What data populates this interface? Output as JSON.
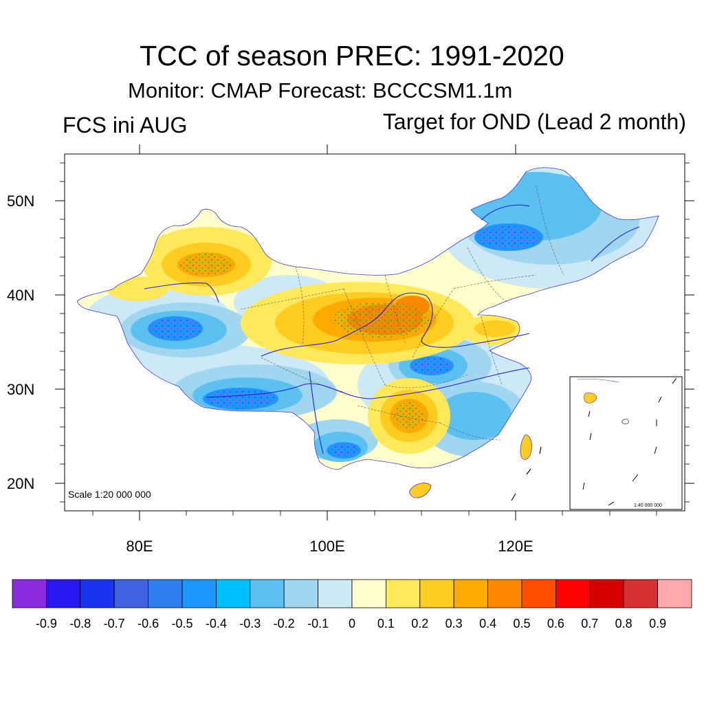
{
  "header": {
    "title": "TCC of season PREC: 1991-2020",
    "subtitle": "Monitor: CMAP   Forecast: BCCCSM1.1m",
    "left_label": "FCS ini AUG",
    "right_label": "Target for OND (Lead 2 month)"
  },
  "map": {
    "lat_labels": [
      "50N",
      "40N",
      "30N",
      "20N"
    ],
    "lon_labels": [
      "80E",
      "100E",
      "120E"
    ],
    "scale_main": "Scale 1:20 000 000",
    "scale_inset": "1:40 000 000"
  },
  "colorbar": {
    "labels": [
      "-0.9",
      "-0.8",
      "-0.7",
      "-0.6",
      "-0.5",
      "-0.4",
      "-0.3",
      "-0.2",
      "-0.1",
      "0",
      "0.1",
      "0.2",
      "0.3",
      "0.4",
      "0.5",
      "0.6",
      "0.7",
      "0.8",
      "0.9"
    ],
    "colors": [
      "#8a2be2",
      "#2a16ee",
      "#1a33f0",
      "#4062e0",
      "#2e80f0",
      "#1e96ff",
      "#00bfff",
      "#5cc0f0",
      "#a0d6f0",
      "#cde8f6",
      "#fffecc",
      "#ffe95a",
      "#ffcc22",
      "#ffaa00",
      "#ff8800",
      "#ff4e00",
      "#ff0000",
      "#d90000",
      "#d63232",
      "#ffaaaa"
    ]
  }
}
